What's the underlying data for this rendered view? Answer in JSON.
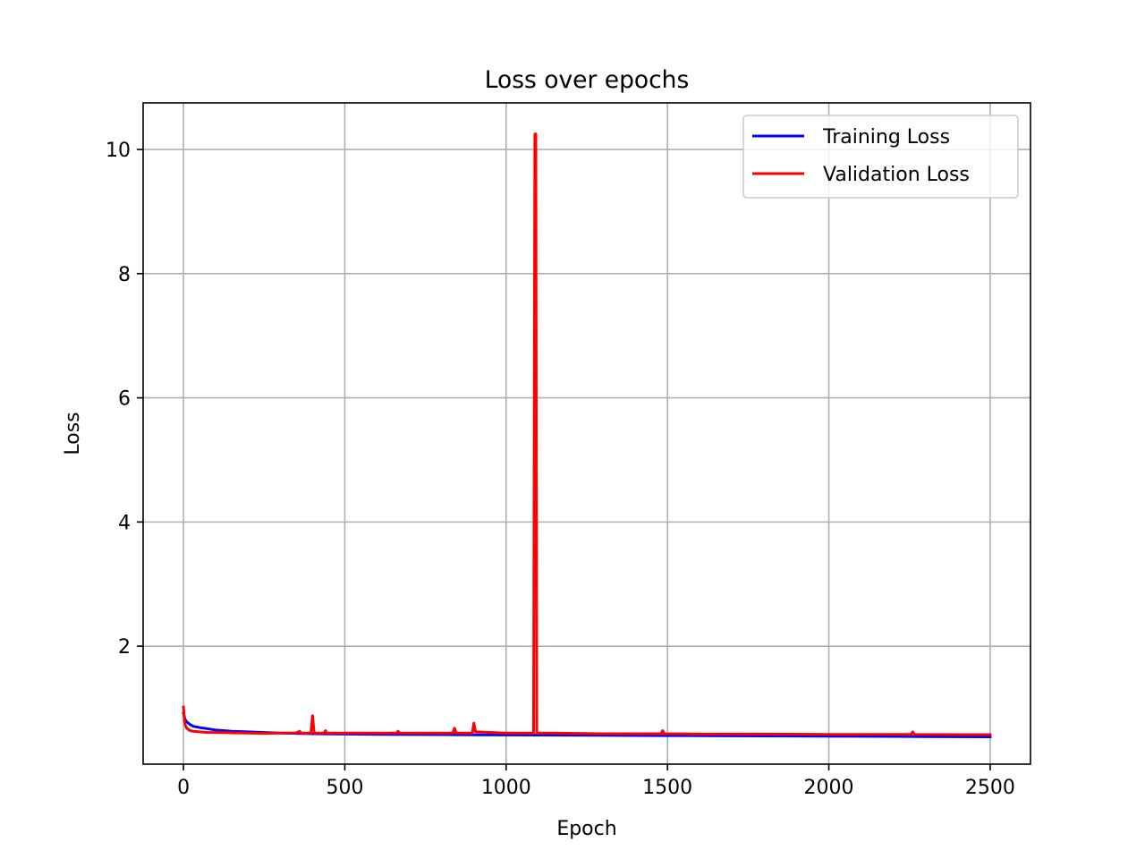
{
  "chart_data": {
    "type": "line",
    "title": "Loss over epochs",
    "xlabel": "Epoch",
    "ylabel": "Loss",
    "xlim": [
      -125,
      2625
    ],
    "ylim": [
      0.1,
      10.75
    ],
    "xticks": [
      0,
      500,
      1000,
      1500,
      2000,
      2500
    ],
    "yticks": [
      2,
      4,
      6,
      8,
      10
    ],
    "grid": true,
    "legend_position": "top-right",
    "series": [
      {
        "name": "Training Loss",
        "color": "#0000ff",
        "x": [
          0,
          5,
          10,
          20,
          30,
          50,
          75,
          100,
          150,
          200,
          250,
          300,
          400,
          500,
          600,
          700,
          800,
          900,
          1000,
          1100,
          1200,
          1300,
          1400,
          1500,
          1600,
          1700,
          1800,
          1900,
          2000,
          2100,
          2200,
          2300,
          2400,
          2500
        ],
        "y": [
          0.92,
          0.82,
          0.78,
          0.74,
          0.71,
          0.69,
          0.67,
          0.65,
          0.63,
          0.62,
          0.61,
          0.6,
          0.59,
          0.585,
          0.58,
          0.578,
          0.575,
          0.572,
          0.57,
          0.568,
          0.566,
          0.564,
          0.562,
          0.56,
          0.558,
          0.556,
          0.554,
          0.552,
          0.55,
          0.548,
          0.546,
          0.544,
          0.542,
          0.54
        ]
      },
      {
        "name": "Validation Loss",
        "color": "#ff0000",
        "x": [
          0,
          3,
          6,
          10,
          15,
          20,
          30,
          50,
          75,
          100,
          150,
          200,
          250,
          300,
          350,
          360,
          365,
          370,
          395,
          400,
          405,
          420,
          435,
          440,
          445,
          500,
          600,
          660,
          665,
          670,
          700,
          800,
          835,
          840,
          845,
          890,
          895,
          900,
          905,
          1000,
          1085,
          1089,
          1092,
          1095,
          1099,
          1150,
          1300,
          1480,
          1485,
          1490,
          1600,
          1800,
          2000,
          2255,
          2260,
          2265,
          2400,
          2500
        ],
        "y": [
          1.02,
          0.8,
          0.72,
          0.68,
          0.66,
          0.64,
          0.63,
          0.62,
          0.61,
          0.61,
          0.605,
          0.6,
          0.595,
          0.6,
          0.605,
          0.63,
          0.6,
          0.6,
          0.6,
          0.88,
          0.6,
          0.6,
          0.6,
          0.64,
          0.6,
          0.6,
          0.6,
          0.6,
          0.63,
          0.6,
          0.6,
          0.6,
          0.6,
          0.68,
          0.6,
          0.6,
          0.6,
          0.76,
          0.62,
          0.6,
          0.6,
          10.25,
          10.25,
          0.6,
          0.6,
          0.6,
          0.59,
          0.59,
          0.64,
          0.59,
          0.585,
          0.585,
          0.58,
          0.58,
          0.62,
          0.58,
          0.575,
          0.575
        ]
      }
    ]
  }
}
